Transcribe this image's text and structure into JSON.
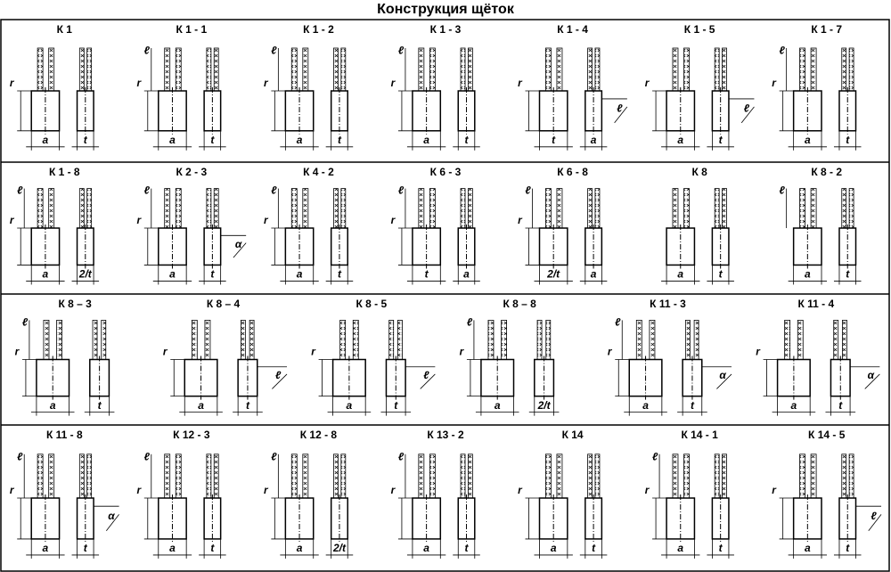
{
  "header": {
    "title": "Конструкция щёток"
  },
  "rows": [
    {
      "cells": [
        {
          "label": "К 1",
          "dims": {
            "height": "r",
            "width": "a",
            "thickness": "t"
          }
        },
        {
          "label": "К 1 - 1",
          "dims": {
            "lead": "ℓ",
            "height": "r",
            "width": "a",
            "thickness": "t"
          }
        },
        {
          "label": "К 1 - 2",
          "dims": {
            "lead": "ℓ",
            "height": "r",
            "width": "a",
            "thickness": "t"
          }
        },
        {
          "label": "К 1 - 3",
          "dims": {
            "lead": "ℓ",
            "height": "r",
            "width": "a",
            "thickness": "t"
          }
        },
        {
          "label": "К 1 - 4",
          "dims": {
            "height": "r",
            "width": "t",
            "thickness": "a",
            "angle": "ℓ"
          }
        },
        {
          "label": "К 1 - 5",
          "dims": {
            "height": "r",
            "width": "a",
            "thickness": "t",
            "angle": "ℓ"
          }
        },
        {
          "label": "К 1 - 7",
          "dims": {
            "lead": "ℓ",
            "height": "r",
            "width": "a",
            "thickness": "t"
          }
        }
      ]
    },
    {
      "cells": [
        {
          "label": "К 1 - 8",
          "dims": {
            "lead": "ℓ",
            "height": "r",
            "width": "a",
            "thickness": "2/t"
          }
        },
        {
          "label": "К 2 - 3",
          "dims": {
            "lead": "ℓ",
            "height": "r",
            "width": "a",
            "thickness": "t",
            "angle": "α"
          }
        },
        {
          "label": "К 4 - 2",
          "dims": {
            "lead": "ℓ",
            "height": "r",
            "width": "a",
            "thickness": "t"
          }
        },
        {
          "label": "К 6 - 3",
          "dims": {
            "lead": "ℓ",
            "height": "r",
            "width": "t",
            "thickness": "a"
          }
        },
        {
          "label": "К 6 - 8",
          "dims": {
            "lead": "ℓ",
            "height": "r",
            "width": "2/t",
            "thickness": "a"
          }
        },
        {
          "label": "К 8",
          "dims": {
            "width": "a",
            "thickness": "t"
          }
        },
        {
          "label": "К 8 - 2",
          "dims": {
            "lead": "ℓ",
            "width": "a",
            "thickness": "t"
          }
        }
      ]
    },
    {
      "cells": [
        {
          "label": "К 8 – 3",
          "dims": {
            "lead": "ℓ",
            "height": "r",
            "width": "a",
            "thickness": "t"
          }
        },
        {
          "label": "К 8 – 4",
          "dims": {
            "height": "r",
            "width": "a",
            "thickness": "t",
            "angle": "ℓ"
          }
        },
        {
          "label": "К 8 - 5",
          "dims": {
            "height": "r",
            "width": "a",
            "thickness": "t",
            "angle": "ℓ"
          }
        },
        {
          "label": "К 8 – 8",
          "dims": {
            "lead": "ℓ",
            "height": "r",
            "width": "a",
            "thickness": "2/t"
          }
        },
        {
          "label": "К 11 - 3",
          "dims": {
            "lead": "ℓ",
            "height": "r",
            "width": "a",
            "thickness": "t",
            "angle": "α"
          }
        },
        {
          "label": "К 11 - 4",
          "dims": {
            "height": "r",
            "width": "a",
            "thickness": "t",
            "angle": "α"
          }
        }
      ]
    },
    {
      "cells": [
        {
          "label": "К 11 - 8",
          "dims": {
            "lead": "ℓ",
            "height": "r",
            "width": "a",
            "thickness": "t",
            "angle": "α"
          }
        },
        {
          "label": "К 12 - 3",
          "dims": {
            "lead": "ℓ",
            "height": "r",
            "width": "a",
            "thickness": "t"
          }
        },
        {
          "label": "К 12 - 8",
          "dims": {
            "lead": "ℓ",
            "height": "r",
            "width": "a",
            "thickness": "2/t"
          }
        },
        {
          "label": "К 13 - 2",
          "dims": {
            "lead": "ℓ",
            "height": "r",
            "width": "a",
            "thickness": "t"
          }
        },
        {
          "label": "К 14",
          "dims": {
            "height": "r",
            "width": "a",
            "thickness": "t"
          }
        },
        {
          "label": "К 14 - 1",
          "dims": {
            "lead": "ℓ",
            "height": "r",
            "width": "a",
            "thickness": "t"
          }
        },
        {
          "label": "К 14 - 5",
          "dims": {
            "height": "r",
            "width": "a",
            "thickness": "t",
            "angle": "ℓ"
          }
        }
      ]
    }
  ]
}
